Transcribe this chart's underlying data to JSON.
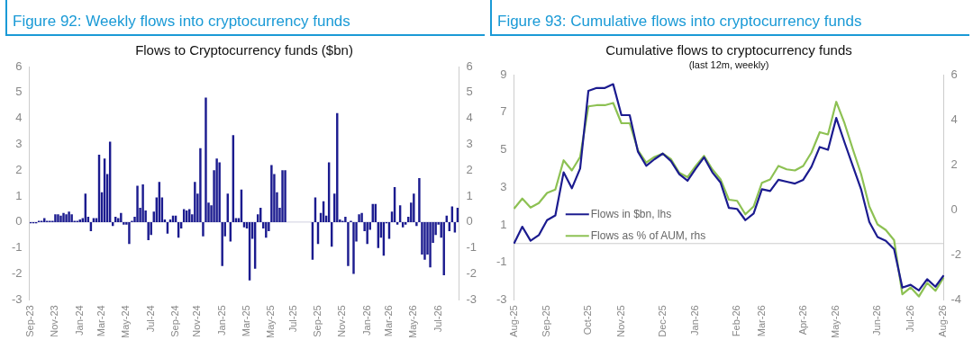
{
  "chart_data": [
    {
      "type": "bar",
      "title": "Figure 92: Weekly flows into cryptocurrency funds",
      "subtitle": "Flows to Cryptocurrency funds ($bn)",
      "categories": [
        "Sep-23",
        null,
        null,
        null,
        null,
        null,
        null,
        null,
        null,
        "Nov-23",
        null,
        null,
        null,
        null,
        null,
        null,
        null,
        null,
        "Jan-24",
        null,
        null,
        null,
        null,
        null,
        null,
        null,
        "Mar-24",
        null,
        null,
        null,
        null,
        null,
        null,
        null,
        null,
        "May-24",
        null,
        null,
        null,
        null,
        null,
        null,
        null,
        null,
        "Jul-24",
        null,
        null,
        null,
        null,
        null,
        null,
        null,
        null,
        "Sep-24",
        null,
        null,
        null,
        null,
        null,
        null,
        null,
        "Nov-24",
        null,
        null,
        null,
        null,
        null,
        null,
        null,
        null,
        "Jan-25",
        null,
        null,
        null,
        null,
        null,
        null,
        null,
        null,
        "Mar-25",
        null,
        null,
        null,
        null,
        null,
        null,
        null,
        null,
        "May-25",
        null,
        null,
        null,
        null,
        null,
        null,
        null,
        "Jul-25",
        null,
        null,
        null,
        null,
        null,
        null,
        null,
        null,
        "Sep-25",
        null,
        null,
        null,
        null,
        null,
        null,
        null,
        null,
        "Nov-25",
        null,
        null,
        null,
        null,
        null,
        null,
        null,
        null,
        "Jan-26",
        null,
        null,
        null,
        null,
        null,
        null,
        null,
        "Mar-26",
        null,
        null,
        null,
        null,
        null,
        null,
        null,
        null,
        "May-26",
        null,
        null,
        null,
        null,
        null,
        null,
        null,
        null,
        "Jul-26",
        null,
        null,
        null,
        null,
        null,
        null,
        null
      ],
      "values": [
        -0.05,
        -0.05,
        -0.05,
        0.05,
        0.05,
        0.15,
        0.05,
        0.05,
        0.05,
        0.3,
        0.3,
        0.25,
        0.35,
        0.3,
        0.4,
        0.3,
        0.05,
        0.05,
        0.1,
        0.15,
        1.1,
        0.2,
        -0.35,
        0.15,
        0.15,
        2.6,
        1.15,
        2.45,
        1.85,
        3.1,
        -0.15,
        0.2,
        0.15,
        0.35,
        -0.1,
        -0.1,
        -0.85,
        0.05,
        0.2,
        1.4,
        0.55,
        1.45,
        0.45,
        -0.7,
        -0.5,
        0.4,
        0.95,
        1.55,
        0.95,
        0.1,
        -0.45,
        0.1,
        0.25,
        0.25,
        -0.6,
        -0.25,
        0.5,
        0.45,
        0.5,
        0.3,
        1.55,
        1.1,
        2.85,
        -0.55,
        4.8,
        0.75,
        0.65,
        2.0,
        2.45,
        2.3,
        -1.7,
        -0.55,
        1.1,
        -0.75,
        3.35,
        0.15,
        0.15,
        1.25,
        -0.2,
        -0.25,
        -2.25,
        -0.65,
        -1.8,
        0.3,
        0.55,
        -0.25,
        -0.6,
        -0.35,
        2.2,
        1.85,
        1.15,
        0.55,
        2.0,
        2.0,
        null,
        null,
        null,
        null,
        null,
        null,
        null,
        null,
        null,
        -1.45,
        0.95,
        -0.85,
        0.35,
        0.8,
        0.25,
        2.3,
        -0.95,
        1.1,
        4.2,
        0.1,
        0.05,
        0.2,
        -1.7,
        0.05,
        -2.0,
        -0.75,
        0.3,
        0.35,
        -0.35,
        -0.85,
        -0.3,
        0.7,
        0.7,
        -1.0,
        -0.6,
        -1.3,
        -0.05,
        -0.65,
        0.4,
        1.35,
        -0.1,
        0.65,
        -0.2,
        -0.1,
        0.2,
        0.75,
        1.1,
        -0.15,
        1.7,
        -1.25,
        -1.45,
        -1.25,
        -1.75,
        -0.8,
        -0.5,
        -0.1,
        -0.6,
        -2.05,
        0.25,
        -0.35,
        0.6,
        -0.4,
        0.55
      ],
      "color": "#1b1b8f",
      "ylim": [
        -3,
        6
      ],
      "yticks": [
        -3,
        -2,
        -1,
        0,
        1,
        2,
        3,
        4,
        5,
        6
      ],
      "y2lim": [
        -3,
        6
      ],
      "y2ticks": [
        -3,
        -2,
        -1,
        0,
        1,
        2,
        3,
        4,
        5,
        6
      ],
      "grid": false,
      "legend": false,
      "ref_lines": [
        {
          "axis": "y",
          "value": 0,
          "color": "#cfcfe0"
        }
      ]
    },
    {
      "type": "line",
      "title": "Figure 93: Cumulative flows into cryptocurrency funds",
      "subtitle": "Cumulative flows to cryptocurrency funds",
      "annotations": [
        "(last 12m, weekly)"
      ],
      "categories": [
        "Aug-25",
        null,
        null,
        null,
        "Sep-25",
        null,
        null,
        null,
        null,
        "Oct-25",
        null,
        null,
        null,
        "Nov-25",
        null,
        null,
        null,
        null,
        "Dec-25",
        null,
        null,
        null,
        "Jan-26",
        null,
        null,
        null,
        null,
        "Feb-26",
        null,
        null,
        "Mar-26",
        null,
        null,
        null,
        null,
        "Apr-26",
        null,
        null,
        null,
        "May-26",
        null,
        null,
        null,
        null,
        "Jun-26",
        null,
        null,
        null,
        "Jul-26",
        null,
        null,
        null,
        "Aug-26"
      ],
      "series": [
        {
          "name": "Flows in $bn, lhs",
          "color": "#1b1b8f",
          "values": [
            0.0,
            0.9,
            0.15,
            0.45,
            1.25,
            1.5,
            3.8,
            2.95,
            4.0,
            8.15,
            8.3,
            8.3,
            8.5,
            6.85,
            6.85,
            4.9,
            4.15,
            4.5,
            4.8,
            4.4,
            3.7,
            3.35,
            4.0,
            4.6,
            3.8,
            3.25,
            1.9,
            1.85,
            1.25,
            1.6,
            2.9,
            2.8,
            3.4,
            3.3,
            3.2,
            3.4,
            4.1,
            5.15,
            5.0,
            6.7,
            5.4,
            4.15,
            2.9,
            1.15,
            0.35,
            0.15,
            -0.3,
            -2.35,
            -2.2,
            -2.5,
            -1.9,
            -2.3,
            -1.7
          ]
        },
        {
          "name": "Flows as % of AUM, rhs",
          "color": "#8dc153",
          "axis": "y2",
          "values": [
            0.05,
            0.5,
            0.1,
            0.3,
            0.75,
            0.9,
            2.2,
            1.75,
            2.35,
            4.6,
            4.65,
            4.65,
            4.75,
            3.85,
            3.85,
            2.65,
            2.1,
            2.35,
            2.5,
            2.25,
            1.65,
            1.45,
            1.95,
            2.4,
            1.8,
            1.35,
            0.45,
            0.4,
            -0.2,
            0.15,
            1.2,
            1.35,
            1.95,
            1.8,
            1.75,
            1.95,
            2.55,
            3.45,
            3.35,
            4.8,
            3.85,
            2.7,
            1.6,
            0.15,
            -0.65,
            -0.9,
            -1.35,
            -3.75,
            -3.45,
            -3.85,
            -3.25,
            -3.6,
            -3.0
          ]
        }
      ],
      "ylim": [
        -3,
        9
      ],
      "yticks": [
        -3,
        -1,
        1,
        3,
        5,
        7,
        9
      ],
      "y2lim": [
        -4,
        6
      ],
      "y2ticks": [
        -4,
        -2,
        0,
        2,
        4,
        6
      ],
      "grid": false,
      "legend": "left",
      "marker": "none",
      "ref_lines": [
        {
          "axis": "y",
          "value": 0,
          "color": "#cccccc"
        }
      ]
    }
  ]
}
